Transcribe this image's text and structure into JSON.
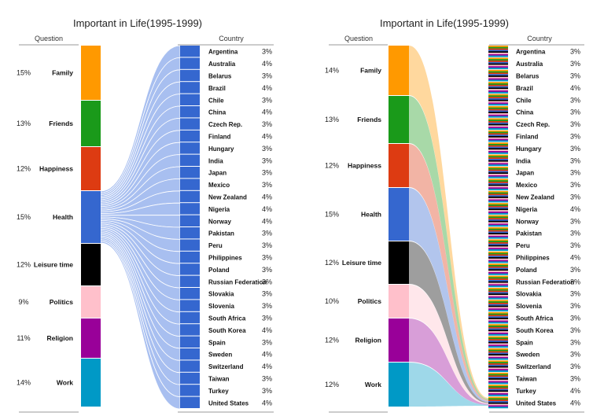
{
  "chart_data": [
    {
      "type": "sankey",
      "title": "Important in Life(1995-1999)",
      "left_header": "Question",
      "right_header": "Country",
      "questions": [
        {
          "name": "Family",
          "pct": "15%",
          "color": "#ff9900"
        },
        {
          "name": "Friends",
          "pct": "13%",
          "color": "#1a9a1a"
        },
        {
          "name": "Happiness",
          "pct": "12%",
          "color": "#dd3b12"
        },
        {
          "name": "Health",
          "pct": "15%",
          "color": "#3567cf"
        },
        {
          "name": "Leisure time",
          "pct": "12%",
          "color": "#000000"
        },
        {
          "name": "Politics",
          "pct": "9%",
          "color": "#ffc0cb"
        },
        {
          "name": "Religion",
          "pct": "11%",
          "color": "#990099"
        },
        {
          "name": "Work",
          "pct": "14%",
          "color": "#0099c6"
        }
      ],
      "countries": [
        {
          "name": "Argentina",
          "pct": "3%"
        },
        {
          "name": "Australia",
          "pct": "4%"
        },
        {
          "name": "Belarus",
          "pct": "3%"
        },
        {
          "name": "Brazil",
          "pct": "4%"
        },
        {
          "name": "Chile",
          "pct": "3%"
        },
        {
          "name": "China",
          "pct": "4%"
        },
        {
          "name": "Czech Rep.",
          "pct": "3%"
        },
        {
          "name": "Finland",
          "pct": "4%"
        },
        {
          "name": "Hungary",
          "pct": "3%"
        },
        {
          "name": "India",
          "pct": "3%"
        },
        {
          "name": "Japan",
          "pct": "3%"
        },
        {
          "name": "Mexico",
          "pct": "3%"
        },
        {
          "name": "New Zealand",
          "pct": "4%"
        },
        {
          "name": "Nigeria",
          "pct": "4%"
        },
        {
          "name": "Norway",
          "pct": "4%"
        },
        {
          "name": "Pakistan",
          "pct": "3%"
        },
        {
          "name": "Peru",
          "pct": "3%"
        },
        {
          "name": "Philippines",
          "pct": "3%"
        },
        {
          "name": "Poland",
          "pct": "3%"
        },
        {
          "name": "Russian Federation",
          "pct": "3%"
        },
        {
          "name": "Slovakia",
          "pct": "3%"
        },
        {
          "name": "Slovenia",
          "pct": "3%"
        },
        {
          "name": "South Africa",
          "pct": "3%"
        },
        {
          "name": "South Korea",
          "pct": "4%"
        },
        {
          "name": "Spain",
          "pct": "3%"
        },
        {
          "name": "Sweden",
          "pct": "4%"
        },
        {
          "name": "Switzerland",
          "pct": "4%"
        },
        {
          "name": "Taiwan",
          "pct": "3%"
        },
        {
          "name": "Turkey",
          "pct": "3%"
        },
        {
          "name": "United States",
          "pct": "4%"
        }
      ],
      "highlight": "Health",
      "country_color": "#3567cf",
      "link_color": "#a8bff0"
    },
    {
      "type": "sankey",
      "title": "Important in Life(1995-1999)",
      "left_header": "Question",
      "right_header": "Country",
      "questions": [
        {
          "name": "Family",
          "pct": "14%",
          "color": "#ff9900"
        },
        {
          "name": "Friends",
          "pct": "13%",
          "color": "#1a9a1a"
        },
        {
          "name": "Happiness",
          "pct": "12%",
          "color": "#dd3b12"
        },
        {
          "name": "Health",
          "pct": "15%",
          "color": "#3567cf"
        },
        {
          "name": "Leisure time",
          "pct": "12%",
          "color": "#000000"
        },
        {
          "name": "Politics",
          "pct": "10%",
          "color": "#ffc0cb"
        },
        {
          "name": "Religion",
          "pct": "12%",
          "color": "#990099"
        },
        {
          "name": "Work",
          "pct": "12%",
          "color": "#0099c6"
        }
      ],
      "countries": [
        {
          "name": "Argentina",
          "pct": "3%"
        },
        {
          "name": "Australia",
          "pct": "3%"
        },
        {
          "name": "Belarus",
          "pct": "3%"
        },
        {
          "name": "Brazil",
          "pct": "4%"
        },
        {
          "name": "Chile",
          "pct": "3%"
        },
        {
          "name": "China",
          "pct": "3%"
        },
        {
          "name": "Czech Rep.",
          "pct": "3%"
        },
        {
          "name": "Finland",
          "pct": "3%"
        },
        {
          "name": "Hungary",
          "pct": "3%"
        },
        {
          "name": "India",
          "pct": "3%"
        },
        {
          "name": "Japan",
          "pct": "3%"
        },
        {
          "name": "Mexico",
          "pct": "3%"
        },
        {
          "name": "New Zealand",
          "pct": "3%"
        },
        {
          "name": "Nigeria",
          "pct": "4%"
        },
        {
          "name": "Norway",
          "pct": "3%"
        },
        {
          "name": "Pakistan",
          "pct": "3%"
        },
        {
          "name": "Peru",
          "pct": "3%"
        },
        {
          "name": "Philippines",
          "pct": "4%"
        },
        {
          "name": "Poland",
          "pct": "3%"
        },
        {
          "name": "Russian Federation",
          "pct": "3%"
        },
        {
          "name": "Slovakia",
          "pct": "3%"
        },
        {
          "name": "Slovenia",
          "pct": "3%"
        },
        {
          "name": "South Africa",
          "pct": "3%"
        },
        {
          "name": "South Korea",
          "pct": "3%"
        },
        {
          "name": "Spain",
          "pct": "3%"
        },
        {
          "name": "Sweden",
          "pct": "3%"
        },
        {
          "name": "Switzerland",
          "pct": "3%"
        },
        {
          "name": "Taiwan",
          "pct": "3%"
        },
        {
          "name": "Turkey",
          "pct": "4%"
        },
        {
          "name": "United States",
          "pct": "4%"
        }
      ],
      "highlight": "all",
      "country_color": "striped"
    }
  ]
}
